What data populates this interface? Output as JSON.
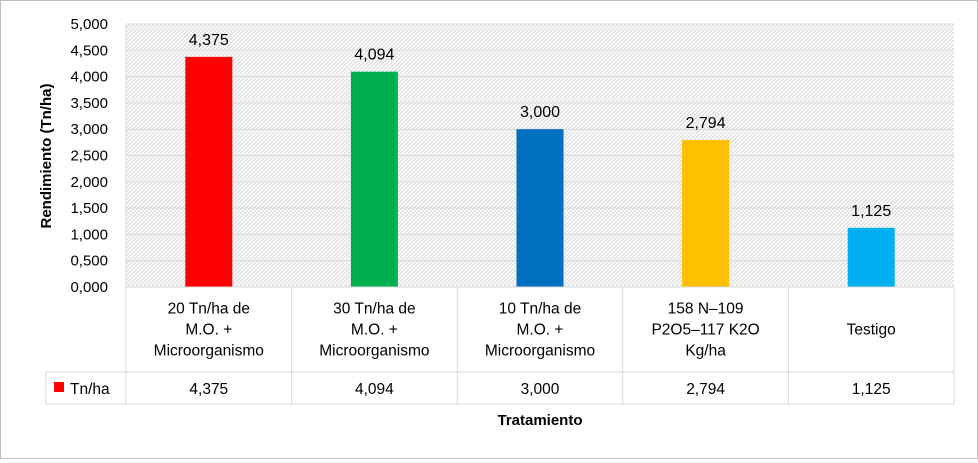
{
  "chart_data": {
    "type": "bar",
    "categories": [
      [
        "20 Tn/ha de",
        "M.O. +",
        "Microorganismo"
      ],
      [
        "30 Tn/ha de",
        "M.O. +",
        "Microorganismo"
      ],
      [
        "10 Tn/ha de",
        "M.O. +",
        "Microorganismo"
      ],
      [
        "158 N–109",
        "P2O5–117 K2O",
        "Kg/ha"
      ],
      [
        "Testigo"
      ]
    ],
    "values": [
      4.375,
      4.094,
      3.0,
      2.794,
      1.125
    ],
    "value_labels": [
      "4,375",
      "4,094",
      "3,000",
      "2,794",
      "1,125"
    ],
    "bar_colors": [
      "#ff0000",
      "#00b050",
      "#0070c0",
      "#ffc000",
      "#00b0f0"
    ],
    "series_name": "Tn/ha",
    "legend_color": "#ff0000",
    "ylabel": "Rendimiento (Tn/ha)",
    "xlabel": "Tratamiento",
    "ylim": [
      0,
      5
    ],
    "yticks": [
      "0,000",
      "0,500",
      "1,000",
      "1,500",
      "2,000",
      "2,500",
      "3,000",
      "3,500",
      "4,000",
      "4,500",
      "5,000"
    ],
    "grid": true,
    "data_table": true
  }
}
